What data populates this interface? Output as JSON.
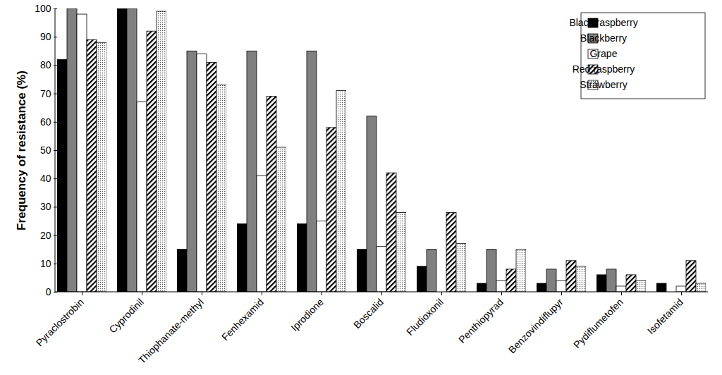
{
  "chart_data": {
    "type": "bar",
    "y_label": "Frequency of resistance (%)",
    "categories": [
      "Pyraclostrobin",
      "Cyprodinil",
      "Thiophanate-methyl",
      "Fenhexamid",
      "Iprodione",
      "Boscalid",
      "Fludioxonil",
      "Penthiopyrad",
      "Benzovindiflupyr",
      "Pydiflumetofen",
      "Isofetamid"
    ],
    "series": [
      {
        "name": "Black raspberry",
        "color": "#000000",
        "values": [
          82,
          100,
          15,
          24,
          24,
          15,
          9,
          3,
          3,
          6,
          3
        ]
      },
      {
        "name": "Blackberry",
        "color": "#808080",
        "values": [
          100,
          100,
          85,
          85,
          85,
          62,
          15,
          15,
          8,
          8,
          0
        ]
      },
      {
        "name": "Grape",
        "color": "#ffffff",
        "values": [
          98,
          67,
          84,
          41,
          25,
          16,
          0,
          4,
          4,
          2,
          2
        ]
      },
      {
        "name": "Red raspberry",
        "color": "#000000",
        "values": [
          89,
          92,
          81,
          69,
          58,
          42,
          28,
          8,
          11,
          6,
          11
        ]
      },
      {
        "name": "Strawberry",
        "color": "#555555",
        "values": [
          88,
          99,
          73,
          51,
          71,
          28,
          17,
          15,
          9,
          4,
          3
        ]
      }
    ],
    "ylim": [
      0,
      100
    ],
    "yticks": [
      0,
      10,
      20,
      30,
      40,
      50,
      60,
      70,
      80,
      90,
      100
    ],
    "grid": false,
    "legend": "top-right"
  }
}
